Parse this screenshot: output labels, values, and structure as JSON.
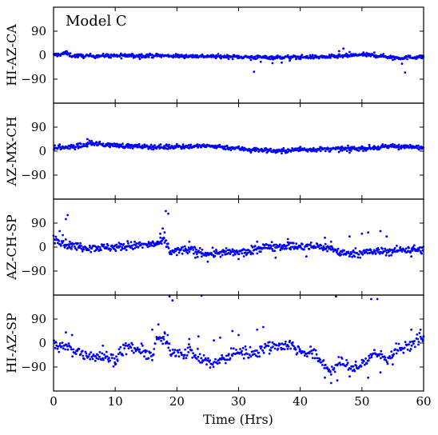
{
  "chart_data": {
    "type": "scatter",
    "title": "Model C",
    "xlabel": "Time (Hrs)",
    "xlim": [
      0,
      60
    ],
    "xticks": [
      0,
      10,
      20,
      30,
      40,
      50,
      60
    ],
    "ylim": [
      -180,
      180
    ],
    "yticks": [
      90,
      0,
      -90
    ],
    "yticklabels": [
      "90",
      "0",
      "−90"
    ],
    "marker_color": "#0000ff",
    "grid": false,
    "shared_x": true,
    "panels": [
      {
        "name": "HI-AZ-CA",
        "ylabel": "HI-AZ-CA",
        "trend": [
          [
            0,
            0
          ],
          [
            1,
            3
          ],
          [
            2,
            8
          ],
          [
            3,
            -2
          ],
          [
            5,
            -3
          ],
          [
            10,
            -2
          ],
          [
            15,
            -1
          ],
          [
            20,
            -3
          ],
          [
            25,
            -4
          ],
          [
            30,
            -6
          ],
          [
            33,
            -8
          ],
          [
            36,
            -8
          ],
          [
            40,
            -7
          ],
          [
            45,
            -6
          ],
          [
            48,
            -2
          ],
          [
            50,
            2
          ],
          [
            53,
            -3
          ],
          [
            56,
            -10
          ],
          [
            58,
            -8
          ],
          [
            60,
            -6
          ]
        ],
        "noise": 5,
        "outliers": [
          [
            2,
            14
          ],
          [
            9,
            -8
          ],
          [
            11,
            -12
          ],
          [
            13,
            -10
          ],
          [
            14,
            -14
          ],
          [
            22,
            -6
          ],
          [
            27,
            -8
          ],
          [
            32,
            -18
          ],
          [
            32.5,
            -62
          ],
          [
            33.6,
            -25
          ],
          [
            35.5,
            -30
          ],
          [
            37,
            -28
          ],
          [
            38.3,
            -20
          ],
          [
            39.3,
            -15
          ],
          [
            43,
            -12
          ],
          [
            46.3,
            15
          ],
          [
            47,
            25
          ],
          [
            48,
            12
          ],
          [
            52,
            10
          ],
          [
            55,
            -18
          ],
          [
            56.5,
            -32
          ],
          [
            57,
            -65
          ]
        ]
      },
      {
        "name": "AZ-MX-CH",
        "ylabel": "AZ-MX-CH",
        "trend": [
          [
            0,
            12
          ],
          [
            3,
            15
          ],
          [
            5,
            22
          ],
          [
            6,
            30
          ],
          [
            8,
            25
          ],
          [
            10,
            22
          ],
          [
            13,
            18
          ],
          [
            15,
            17
          ],
          [
            18,
            15
          ],
          [
            20,
            17
          ],
          [
            25,
            19
          ],
          [
            27,
            17
          ],
          [
            28,
            14
          ],
          [
            32,
            6
          ],
          [
            34,
            4
          ],
          [
            36,
            1
          ],
          [
            38,
            2
          ],
          [
            40,
            6
          ],
          [
            45,
            7
          ],
          [
            50,
            10
          ],
          [
            53,
            14
          ],
          [
            55,
            18
          ],
          [
            57,
            15
          ],
          [
            60,
            13
          ]
        ],
        "noise": 6,
        "outliers": [
          [
            1,
            25
          ],
          [
            4,
            28
          ],
          [
            5.5,
            45
          ],
          [
            6.2,
            38
          ],
          [
            7,
            32
          ],
          [
            9,
            28
          ],
          [
            12,
            22
          ],
          [
            18.3,
            25
          ],
          [
            20,
            26
          ],
          [
            21,
            25
          ],
          [
            32,
            -5
          ],
          [
            36,
            -6
          ],
          [
            37,
            -8
          ],
          [
            40,
            16
          ],
          [
            48,
            -6
          ],
          [
            50,
            18
          ],
          [
            55,
            26
          ],
          [
            56,
            24
          ]
        ]
      },
      {
        "name": "AZ-CH-SP",
        "ylabel": "AZ-CH-SP",
        "trend": [
          [
            0,
            35
          ],
          [
            1,
            25
          ],
          [
            2,
            10
          ],
          [
            3,
            5
          ],
          [
            5,
            0
          ],
          [
            8,
            -2
          ],
          [
            12,
            3
          ],
          [
            15,
            8
          ],
          [
            17,
            12
          ],
          [
            18,
            25
          ],
          [
            19,
            -20
          ],
          [
            20,
            -12
          ],
          [
            22,
            -10
          ],
          [
            25,
            -25
          ],
          [
            27,
            -22
          ],
          [
            30,
            -20
          ],
          [
            32,
            -18
          ],
          [
            33,
            -5
          ],
          [
            35,
            3
          ],
          [
            38,
            5
          ],
          [
            40,
            0
          ],
          [
            43,
            3
          ],
          [
            45,
            -5
          ],
          [
            47,
            -25
          ],
          [
            50,
            -20
          ],
          [
            55,
            -15
          ],
          [
            57,
            -8
          ],
          [
            60,
            -10
          ]
        ],
        "noise": 11,
        "outliers": [
          [
            1,
            60
          ],
          [
            1.5,
            45
          ],
          [
            2,
            105
          ],
          [
            2.3,
            120
          ],
          [
            3,
            15
          ],
          [
            12,
            22
          ],
          [
            14,
            18
          ],
          [
            17.3,
            50
          ],
          [
            17.7,
            70
          ],
          [
            18,
            55
          ],
          [
            18.2,
            135
          ],
          [
            18.6,
            125
          ],
          [
            20,
            -30
          ],
          [
            22,
            20
          ],
          [
            23,
            -40
          ],
          [
            25,
            -55
          ],
          [
            30,
            -45
          ],
          [
            33,
            20
          ],
          [
            36,
            -40
          ],
          [
            38,
            30
          ],
          [
            41,
            -35
          ],
          [
            44,
            35
          ],
          [
            45,
            20
          ],
          [
            48,
            40
          ],
          [
            50,
            50
          ],
          [
            51,
            55
          ],
          [
            53,
            60
          ],
          [
            54,
            40
          ],
          [
            58,
            -35
          ]
        ]
      },
      {
        "name": "HI-AZ-SP",
        "ylabel": "HI-AZ-SP",
        "trend": [
          [
            0,
            -10
          ],
          [
            2,
            -15
          ],
          [
            3,
            -25
          ],
          [
            5,
            -40
          ],
          [
            7,
            -50
          ],
          [
            9,
            -55
          ],
          [
            10,
            -60
          ],
          [
            11,
            -30
          ],
          [
            12,
            -15
          ],
          [
            13,
            -20
          ],
          [
            15,
            -40
          ],
          [
            16,
            -45
          ],
          [
            17,
            20
          ],
          [
            18,
            10
          ],
          [
            19,
            -30
          ],
          [
            20,
            -30
          ],
          [
            21,
            -40
          ],
          [
            22,
            -25
          ],
          [
            23,
            -50
          ],
          [
            24,
            -60
          ],
          [
            25,
            -70
          ],
          [
            26,
            -80
          ],
          [
            27,
            -65
          ],
          [
            28,
            -55
          ],
          [
            29,
            -40
          ],
          [
            30,
            -30
          ],
          [
            31,
            -35
          ],
          [
            32,
            -40
          ],
          [
            33,
            -30
          ],
          [
            34,
            -20
          ],
          [
            35,
            -10
          ],
          [
            37,
            -10
          ],
          [
            38,
            -5
          ],
          [
            39,
            -15
          ],
          [
            40,
            -30
          ],
          [
            42,
            -40
          ],
          [
            43,
            -60
          ],
          [
            44,
            -80
          ],
          [
            45,
            -110
          ],
          [
            46,
            -80
          ],
          [
            47,
            -70
          ],
          [
            48,
            -100
          ],
          [
            49,
            -90
          ],
          [
            50,
            -80
          ],
          [
            51,
            -60
          ],
          [
            52,
            -40
          ],
          [
            53,
            -45
          ],
          [
            54,
            -60
          ],
          [
            55,
            -40
          ],
          [
            56,
            -20
          ],
          [
            57,
            -20
          ],
          [
            58,
            -10
          ],
          [
            59,
            20
          ],
          [
            60,
            10
          ]
        ],
        "noise": 16,
        "outliers": [
          [
            2,
            40
          ],
          [
            3,
            30
          ],
          [
            8,
            -10
          ],
          [
            10,
            -80
          ],
          [
            16,
            50
          ],
          [
            17,
            70
          ],
          [
            18,
            40
          ],
          [
            18.5,
            30
          ],
          [
            18.8,
            175
          ],
          [
            19.3,
            160
          ],
          [
            22,
            15
          ],
          [
            23.5,
            25
          ],
          [
            24,
            178
          ],
          [
            26,
            10
          ],
          [
            27,
            20
          ],
          [
            29,
            45
          ],
          [
            30,
            30
          ],
          [
            33,
            50
          ],
          [
            34,
            60
          ],
          [
            35,
            -40
          ],
          [
            41,
            -40
          ],
          [
            44,
            -130
          ],
          [
            45,
            -150
          ],
          [
            46,
            -140
          ],
          [
            45.8,
            175
          ],
          [
            49,
            -70
          ],
          [
            51,
            -130
          ],
          [
            51.5,
            165
          ],
          [
            52.5,
            165
          ],
          [
            53,
            -110
          ],
          [
            55,
            -80
          ],
          [
            58,
            50
          ],
          [
            59.5,
            50
          ],
          [
            60,
            25
          ]
        ]
      }
    ]
  }
}
